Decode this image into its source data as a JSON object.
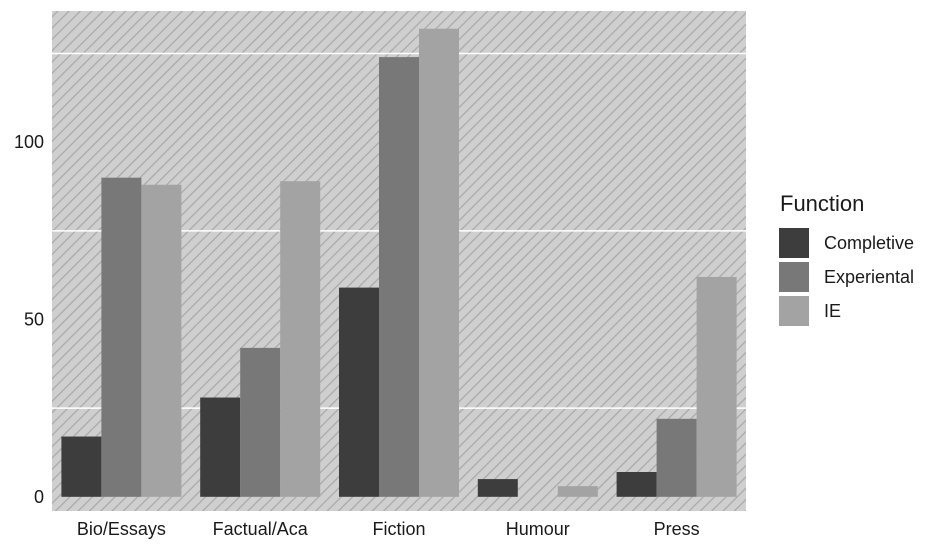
{
  "chart_data": {
    "type": "bar",
    "title": "",
    "xlabel": "",
    "ylabel": "",
    "categories": [
      "Bio/Essays",
      "Factual/Aca",
      "Fiction",
      "Humour",
      "Press"
    ],
    "series": [
      {
        "name": "Completive",
        "values": [
          17,
          28,
          59,
          5,
          7
        ],
        "color": "#3d3d3d"
      },
      {
        "name": "Experiental",
        "values": [
          90,
          42,
          124,
          0,
          22
        ],
        "color": "#787878"
      },
      {
        "name": "IE",
        "values": [
          88,
          89,
          132,
          3,
          62
        ],
        "color": "#a3a3a3"
      }
    ],
    "ylim": [
      -4,
      137
    ],
    "yticks": [
      0,
      50,
      100
    ],
    "yticks_minor": [
      25,
      75,
      125
    ],
    "grid": true,
    "background": "hatched-gray",
    "legend": {
      "title": "Function",
      "position": "right"
    }
  }
}
